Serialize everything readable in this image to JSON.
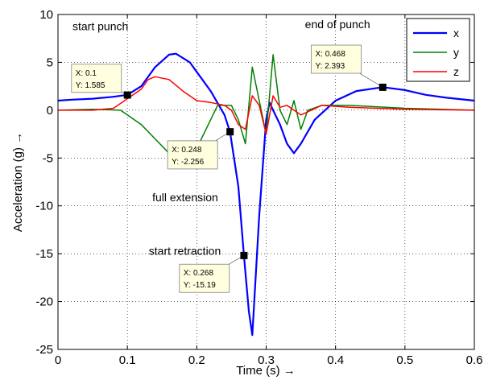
{
  "chart_data": {
    "type": "line",
    "xlabel": "Time (s) →",
    "ylabel": "Acceleration (g) →",
    "xlim": [
      0,
      0.6
    ],
    "ylim": [
      -25,
      10
    ],
    "xticks": [
      "0",
      "0.1",
      "0.2",
      "0.3",
      "0.4",
      "0.5",
      "0.6"
    ],
    "yticks": [
      "10",
      "5",
      "0",
      "-5",
      "-10",
      "-15",
      "-20",
      "-25"
    ],
    "grid": true,
    "legend_position": "top-right",
    "colors": {
      "x": "#0000ff",
      "y": "#008000",
      "z": "#ff0000"
    },
    "series": [
      {
        "name": "x",
        "x": [
          0,
          0.02,
          0.05,
          0.08,
          0.1,
          0.12,
          0.14,
          0.16,
          0.17,
          0.19,
          0.2,
          0.22,
          0.24,
          0.248,
          0.26,
          0.268,
          0.275,
          0.28,
          0.29,
          0.3,
          0.305,
          0.31,
          0.32,
          0.33,
          0.34,
          0.35,
          0.37,
          0.4,
          0.43,
          0.468,
          0.5,
          0.53,
          0.56,
          0.6
        ],
        "values": [
          1.0,
          1.1,
          1.2,
          1.4,
          1.6,
          2.5,
          4.5,
          5.8,
          5.9,
          5.0,
          4.0,
          2.0,
          -0.5,
          -2.3,
          -8.0,
          -15.2,
          -21.0,
          -23.5,
          -11.0,
          -1.0,
          0.8,
          0.0,
          -1.5,
          -3.5,
          -4.5,
          -3.5,
          -1.0,
          1.0,
          2.0,
          2.4,
          2.1,
          1.6,
          1.3,
          1.0
        ]
      },
      {
        "name": "y",
        "x": [
          0,
          0.05,
          0.09,
          0.1,
          0.12,
          0.14,
          0.16,
          0.18,
          0.2,
          0.21,
          0.23,
          0.25,
          0.26,
          0.27,
          0.28,
          0.29,
          0.3,
          0.31,
          0.32,
          0.33,
          0.34,
          0.35,
          0.36,
          0.38,
          0.42,
          0.5,
          0.6
        ],
        "values": [
          0.0,
          0.1,
          0.0,
          -0.5,
          -1.5,
          -3.0,
          -4.5,
          -5.0,
          -4.0,
          -2.5,
          0.5,
          0.5,
          -1.0,
          -3.5,
          4.5,
          1.0,
          -2.5,
          5.8,
          0.0,
          -1.5,
          1.0,
          -2.0,
          0.0,
          0.5,
          0.5,
          0.2,
          0.0
        ]
      },
      {
        "name": "z",
        "x": [
          0,
          0.05,
          0.08,
          0.1,
          0.12,
          0.13,
          0.14,
          0.16,
          0.18,
          0.2,
          0.22,
          0.24,
          0.25,
          0.26,
          0.27,
          0.28,
          0.29,
          0.3,
          0.31,
          0.32,
          0.33,
          0.35,
          0.38,
          0.42,
          0.5,
          0.6
        ],
        "values": [
          0.0,
          0.0,
          0.2,
          1.2,
          2.2,
          3.2,
          3.5,
          3.2,
          2.0,
          1.0,
          0.8,
          0.5,
          0.0,
          -1.5,
          -2.0,
          1.5,
          0.5,
          -2.5,
          1.5,
          0.3,
          0.5,
          -0.5,
          0.5,
          0.3,
          0.1,
          0.0
        ]
      }
    ],
    "annotations": [
      {
        "text": "start punch",
        "x": 0.0,
        "y": 8.8
      },
      {
        "text": "end of punch",
        "x": 0.335,
        "y": 9.0
      },
      {
        "text": "full extension",
        "x": 0.115,
        "y": -9.1
      },
      {
        "text": "start retraction",
        "x": 0.11,
        "y": -14.7
      }
    ],
    "datatips": [
      {
        "x": 0.1,
        "y": 1.585,
        "xtext": "X: 0.1",
        "ytext": "Y: 1.585",
        "box_x": 0.0195,
        "box_y": 4.8
      },
      {
        "x": 0.248,
        "y": -2.256,
        "xtext": "X: 0.248",
        "ytext": "Y: -2.256",
        "box_x": 0.158,
        "box_y": -3.2
      },
      {
        "x": 0.268,
        "y": -15.19,
        "xtext": "X: 0.268",
        "ytext": "Y: -15.19",
        "box_x": 0.175,
        "box_y": -16.1
      },
      {
        "x": 0.468,
        "y": 2.393,
        "xtext": "X: 0.468",
        "ytext": "Y: 2.393",
        "box_x": 0.365,
        "box_y": 6.8
      }
    ]
  }
}
